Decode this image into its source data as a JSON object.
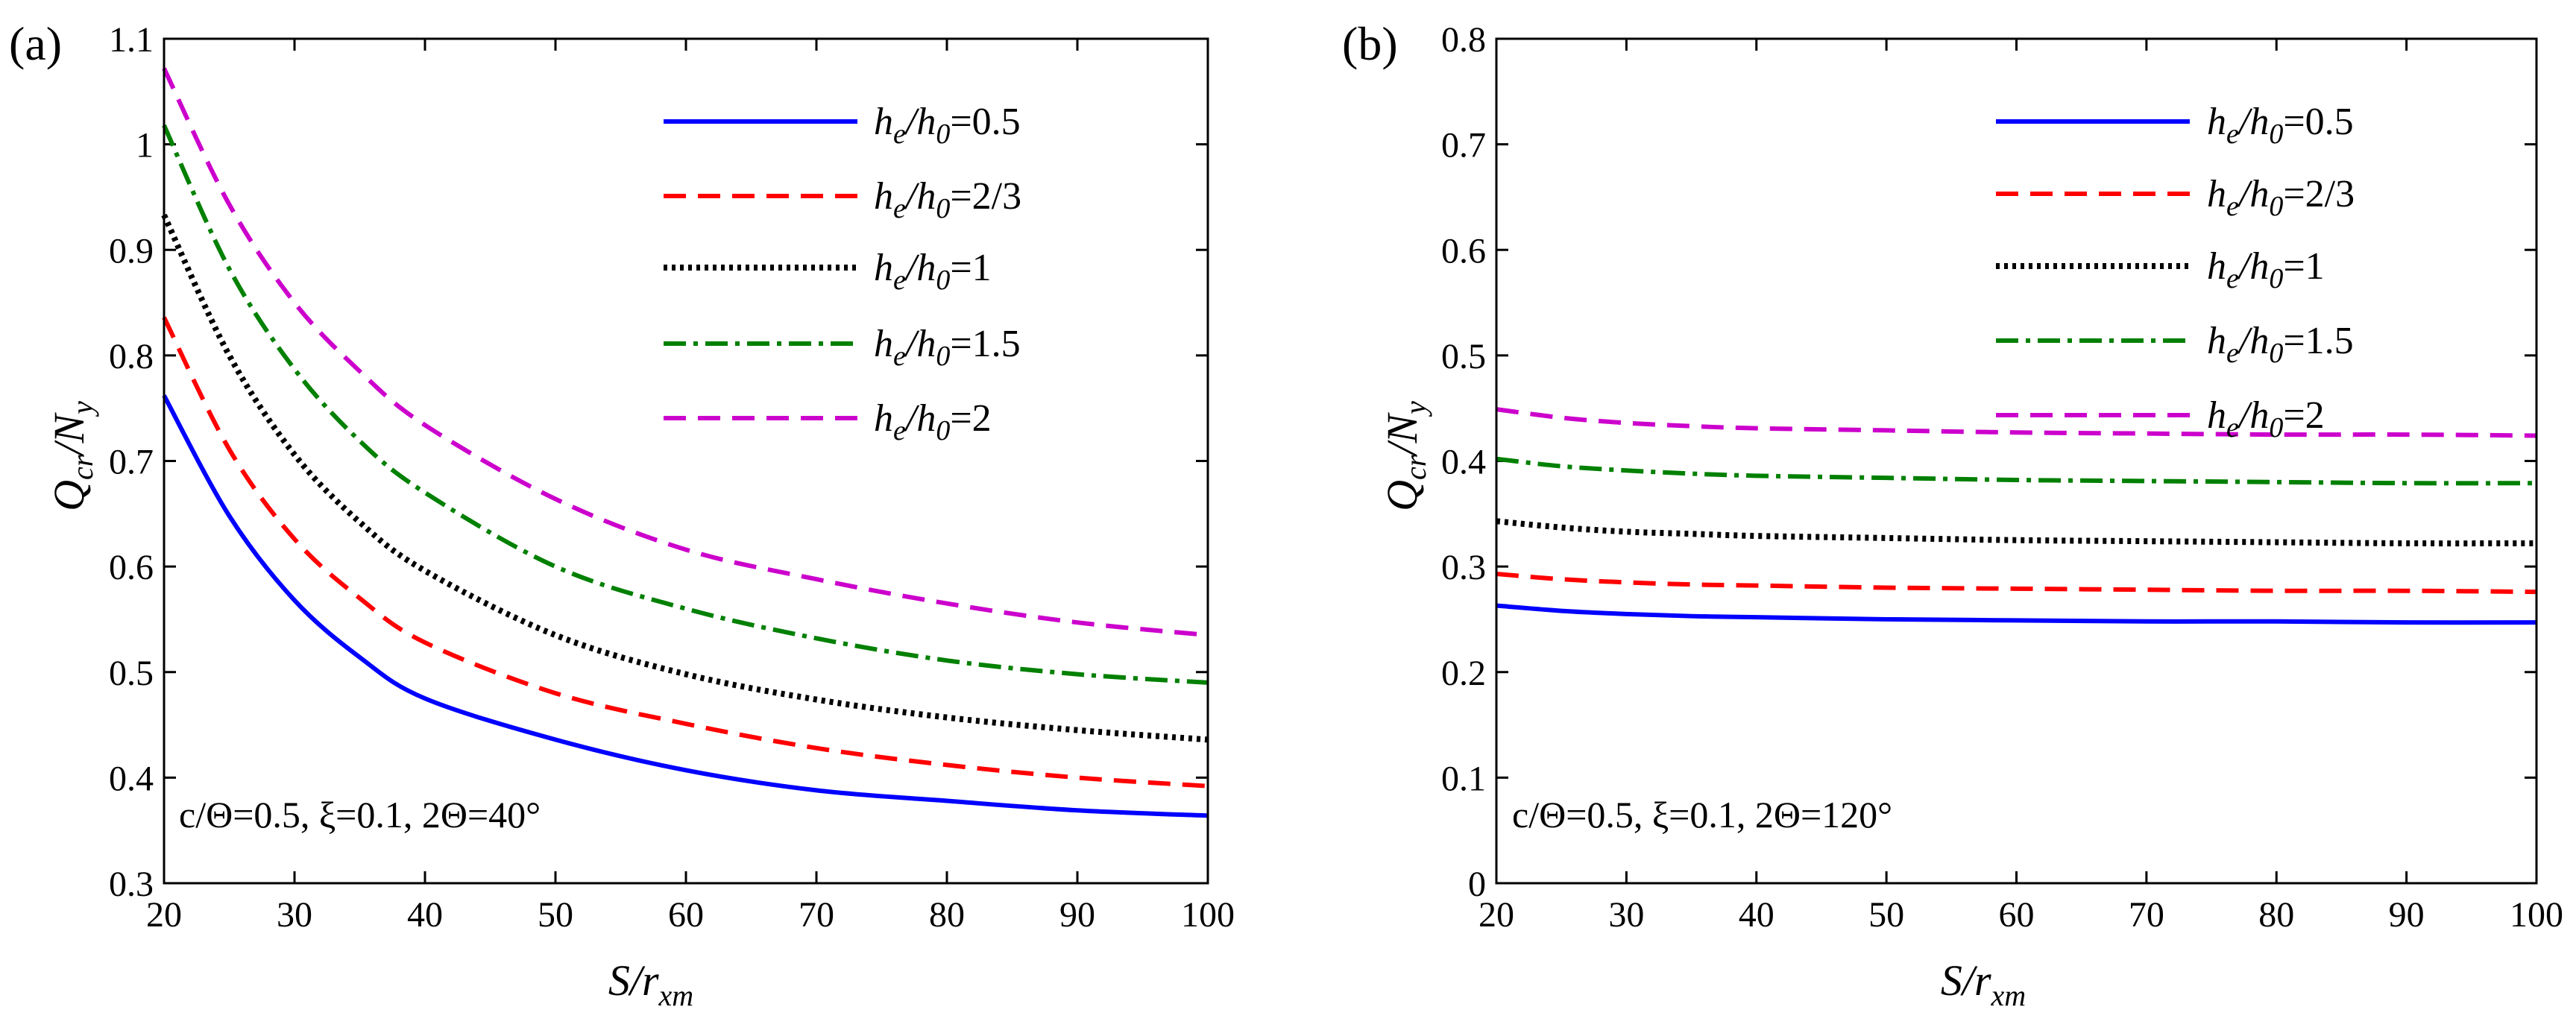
{
  "chart_data": [
    {
      "panel": "(a)",
      "type": "line",
      "xlabel": "S/r_xm",
      "ylabel": "Q_cr/N_y",
      "xlim": [
        20,
        100
      ],
      "ylim": [
        0.3,
        1.1
      ],
      "xticks": [
        20,
        30,
        40,
        50,
        60,
        70,
        80,
        90,
        100
      ],
      "yticks": [
        0.3,
        0.4,
        0.5,
        0.6,
        0.7,
        0.8,
        0.9,
        1.0,
        1.1
      ],
      "ytick_labels": [
        "0.3",
        "0.4",
        "0.5",
        "0.6",
        "0.7",
        "0.8",
        "0.9",
        "1",
        "1.1"
      ],
      "annotation": "c/Θ=0.5, ξ=0.1, 2Θ=40°",
      "legend_position": "top-right",
      "x": [
        20,
        25,
        30,
        35,
        40,
        50,
        60,
        70,
        80,
        90,
        100
      ],
      "series": [
        {
          "name": "h_e/h_0=0.5",
          "legend_value": "0.5",
          "color": "#0000ff",
          "style": "solid",
          "values": [
            0.762,
            0.648,
            0.568,
            0.514,
            0.475,
            0.436,
            0.407,
            0.388,
            0.378,
            0.369,
            0.364
          ]
        },
        {
          "name": "h_e/h_0=2/3",
          "legend_value": "2/3",
          "color": "#ff0000",
          "style": "dashed",
          "values": [
            0.836,
            0.711,
            0.626,
            0.57,
            0.528,
            0.48,
            0.451,
            0.428,
            0.412,
            0.4,
            0.392
          ]
        },
        {
          "name": "h_e/h_0=1",
          "legend_value": "1",
          "color": "#000000",
          "style": "dotted",
          "values": [
            0.933,
            0.8,
            0.706,
            0.642,
            0.596,
            0.535,
            0.498,
            0.474,
            0.457,
            0.445,
            0.436
          ]
        },
        {
          "name": "h_e/h_0=1.5",
          "legend_value": "1.5",
          "color": "#008000",
          "style": "dashdot",
          "values": [
            1.018,
            0.882,
            0.787,
            0.719,
            0.67,
            0.6,
            0.56,
            0.532,
            0.511,
            0.498,
            0.49
          ]
        },
        {
          "name": "h_e/h_0=2",
          "legend_value": "2",
          "color": "#cc00cc",
          "style": "dashed",
          "values": [
            1.072,
            0.943,
            0.85,
            0.785,
            0.734,
            0.664,
            0.616,
            0.588,
            0.565,
            0.547,
            0.535
          ]
        }
      ]
    },
    {
      "panel": "(b)",
      "type": "line",
      "xlabel": "S/r_xm",
      "ylabel": "Q_cr/N_y",
      "xlim": [
        20,
        100
      ],
      "ylim": [
        0,
        0.8
      ],
      "xticks": [
        20,
        30,
        40,
        50,
        60,
        70,
        80,
        90,
        100
      ],
      "yticks": [
        0,
        0.1,
        0.2,
        0.3,
        0.4,
        0.5,
        0.6,
        0.7,
        0.8
      ],
      "ytick_labels": [
        "0",
        "0.1",
        "0.2",
        "0.3",
        "0.4",
        "0.5",
        "0.6",
        "0.7",
        "0.8"
      ],
      "annotation": "c/Θ=0.5, ξ=0.1, 2Θ=120°",
      "legend_position": "top-right",
      "x": [
        20,
        25,
        30,
        35,
        40,
        50,
        60,
        70,
        80,
        90,
        100
      ],
      "series": [
        {
          "name": "h_e/h_0=0.5",
          "legend_value": "0.5",
          "color": "#0000ff",
          "style": "solid",
          "values": [
            0.263,
            0.258,
            0.255,
            0.253,
            0.252,
            0.25,
            0.249,
            0.248,
            0.248,
            0.247,
            0.247
          ]
        },
        {
          "name": "h_e/h_0=2/3",
          "legend_value": "2/3",
          "color": "#ff0000",
          "style": "dashed",
          "values": [
            0.293,
            0.288,
            0.285,
            0.283,
            0.282,
            0.28,
            0.279,
            0.278,
            0.277,
            0.277,
            0.276
          ]
        },
        {
          "name": "h_e/h_0=1",
          "legend_value": "1",
          "color": "#000000",
          "style": "dotted",
          "values": [
            0.343,
            0.337,
            0.333,
            0.331,
            0.329,
            0.327,
            0.325,
            0.324,
            0.323,
            0.322,
            0.322
          ]
        },
        {
          "name": "h_e/h_0=1.5",
          "legend_value": "1.5",
          "color": "#008000",
          "style": "dashdot",
          "values": [
            0.402,
            0.395,
            0.391,
            0.388,
            0.386,
            0.384,
            0.382,
            0.381,
            0.38,
            0.379,
            0.379
          ]
        },
        {
          "name": "h_e/h_0=2",
          "legend_value": "2",
          "color": "#cc00cc",
          "style": "dashed",
          "values": [
            0.449,
            0.441,
            0.436,
            0.433,
            0.431,
            0.429,
            0.427,
            0.426,
            0.425,
            0.425,
            0.424
          ]
        }
      ]
    }
  ]
}
